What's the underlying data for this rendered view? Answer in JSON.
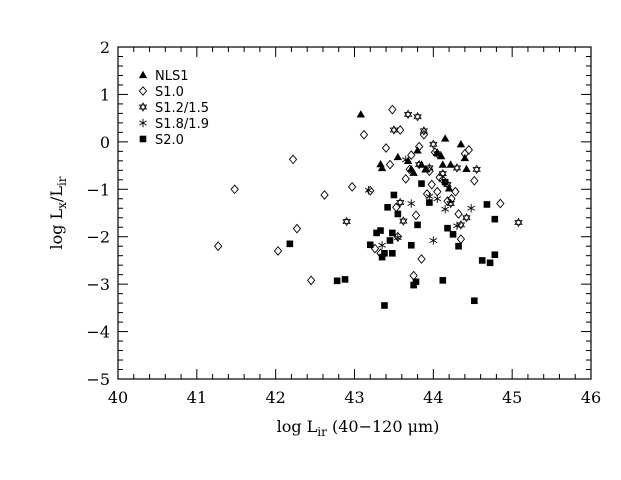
{
  "chart_data": {
    "type": "scatter",
    "title": "",
    "xlabel": "log  L_ir  (40−120  μm)",
    "ylabel": "log  L_x/L_ir",
    "xlim": [
      40,
      46
    ],
    "ylim": [
      -5,
      2
    ],
    "x_ticks": [
      "40",
      "41",
      "42",
      "43",
      "44",
      "45",
      "46"
    ],
    "y_ticks": [
      "−5",
      "−4",
      "−3",
      "−2",
      "−1",
      "0",
      "1",
      "2"
    ],
    "grid": false,
    "legend_position": "top-left",
    "series": [
      {
        "name": "NLS1",
        "marker": "filled-triangle",
        "points": [
          [
            43.08,
            0.58
          ],
          [
            43.33,
            -0.47
          ],
          [
            43.35,
            -0.55
          ],
          [
            43.55,
            -0.32
          ],
          [
            43.68,
            -0.4
          ],
          [
            43.72,
            -0.57
          ],
          [
            43.75,
            -0.65
          ],
          [
            43.8,
            -0.18
          ],
          [
            43.85,
            -0.48
          ],
          [
            43.9,
            -0.58
          ],
          [
            44.05,
            -0.22
          ],
          [
            44.1,
            -0.3
          ],
          [
            44.15,
            0.07
          ],
          [
            44.12,
            -0.48
          ],
          [
            44.22,
            -0.48
          ],
          [
            44.35,
            -0.05
          ],
          [
            44.4,
            -0.34
          ],
          [
            44.42,
            -0.57
          ],
          [
            44.2,
            -0.98
          ]
        ]
      },
      {
        "name": "S1.0",
        "marker": "open-diamond",
        "points": [
          [
            41.27,
            -2.2
          ],
          [
            41.48,
            -1.0
          ],
          [
            42.03,
            -2.3
          ],
          [
            42.22,
            -0.37
          ],
          [
            42.27,
            -1.83
          ],
          [
            42.45,
            -2.92
          ],
          [
            42.62,
            -1.12
          ],
          [
            42.97,
            -0.95
          ],
          [
            43.12,
            0.15
          ],
          [
            43.2,
            -1.03
          ],
          [
            43.26,
            -2.25
          ],
          [
            43.33,
            -2.35
          ],
          [
            43.4,
            -0.13
          ],
          [
            43.45,
            -0.48
          ],
          [
            43.48,
            0.68
          ],
          [
            43.53,
            -1.38
          ],
          [
            43.55,
            -2.0
          ],
          [
            43.58,
            0.25
          ],
          [
            43.65,
            -0.78
          ],
          [
            43.7,
            -0.58
          ],
          [
            43.72,
            -0.28
          ],
          [
            43.75,
            -2.82
          ],
          [
            43.78,
            -1.55
          ],
          [
            43.82,
            -0.1
          ],
          [
            43.85,
            -2.47
          ],
          [
            43.88,
            0.15
          ],
          [
            43.92,
            -1.1
          ],
          [
            43.95,
            -0.62
          ],
          [
            43.98,
            -0.9
          ],
          [
            44.02,
            -0.22
          ],
          [
            44.05,
            -1.05
          ],
          [
            44.08,
            -0.75
          ],
          [
            44.12,
            -0.8
          ],
          [
            44.18,
            -1.25
          ],
          [
            44.23,
            -1.2
          ],
          [
            44.28,
            -1.05
          ],
          [
            44.32,
            -1.52
          ],
          [
            44.35,
            -2.05
          ],
          [
            44.4,
            -0.25
          ],
          [
            44.45,
            -0.17
          ],
          [
            44.52,
            -0.82
          ],
          [
            44.85,
            -1.3
          ]
        ]
      },
      {
        "name": "S1.2/1.5",
        "marker": "open-star",
        "points": [
          [
            42.9,
            -1.68
          ],
          [
            43.5,
            0.25
          ],
          [
            43.58,
            -1.28
          ],
          [
            43.62,
            -1.67
          ],
          [
            43.68,
            0.58
          ],
          [
            43.8,
            0.53
          ],
          [
            43.82,
            -0.48
          ],
          [
            43.88,
            0.23
          ],
          [
            43.95,
            -0.55
          ],
          [
            44.0,
            -0.05
          ],
          [
            44.05,
            -0.25
          ],
          [
            44.12,
            -0.67
          ],
          [
            44.18,
            -0.9
          ],
          [
            44.22,
            -1.3
          ],
          [
            44.3,
            -0.55
          ],
          [
            44.35,
            -1.75
          ],
          [
            44.42,
            -1.6
          ],
          [
            44.55,
            -0.58
          ],
          [
            45.08,
            -1.7
          ]
        ]
      },
      {
        "name": "S1.8/1.9",
        "marker": "asterisk",
        "points": [
          [
            43.18,
            -1.02
          ],
          [
            43.35,
            -2.18
          ],
          [
            43.55,
            -2.02
          ],
          [
            43.65,
            -0.38
          ],
          [
            43.72,
            -1.3
          ],
          [
            43.95,
            -1.15
          ],
          [
            44.0,
            -2.08
          ],
          [
            44.05,
            -1.2
          ],
          [
            44.15,
            -1.42
          ],
          [
            44.3,
            -1.77
          ],
          [
            44.48,
            -1.4
          ]
        ]
      },
      {
        "name": "S2.0",
        "marker": "filled-square",
        "points": [
          [
            42.18,
            -2.15
          ],
          [
            42.78,
            -2.93
          ],
          [
            42.88,
            -2.9
          ],
          [
            43.2,
            -2.17
          ],
          [
            43.28,
            -1.92
          ],
          [
            43.33,
            -1.87
          ],
          [
            43.35,
            -2.43
          ],
          [
            43.38,
            -2.35
          ],
          [
            43.38,
            -3.45
          ],
          [
            43.42,
            -1.38
          ],
          [
            43.45,
            -2.08
          ],
          [
            43.48,
            -1.92
          ],
          [
            43.48,
            -2.35
          ],
          [
            43.5,
            -1.12
          ],
          [
            43.55,
            -1.52
          ],
          [
            43.72,
            -2.18
          ],
          [
            43.75,
            -3.02
          ],
          [
            43.78,
            -2.95
          ],
          [
            43.8,
            -1.75
          ],
          [
            43.85,
            -0.88
          ],
          [
            43.95,
            -1.28
          ],
          [
            44.12,
            -2.92
          ],
          [
            44.15,
            -0.85
          ],
          [
            44.18,
            -1.82
          ],
          [
            44.25,
            -1.95
          ],
          [
            44.32,
            -2.2
          ],
          [
            44.52,
            -3.35
          ],
          [
            44.62,
            -2.5
          ],
          [
            44.68,
            -1.32
          ],
          [
            44.72,
            -2.55
          ],
          [
            44.78,
            -1.63
          ],
          [
            44.78,
            -2.38
          ]
        ]
      }
    ]
  }
}
